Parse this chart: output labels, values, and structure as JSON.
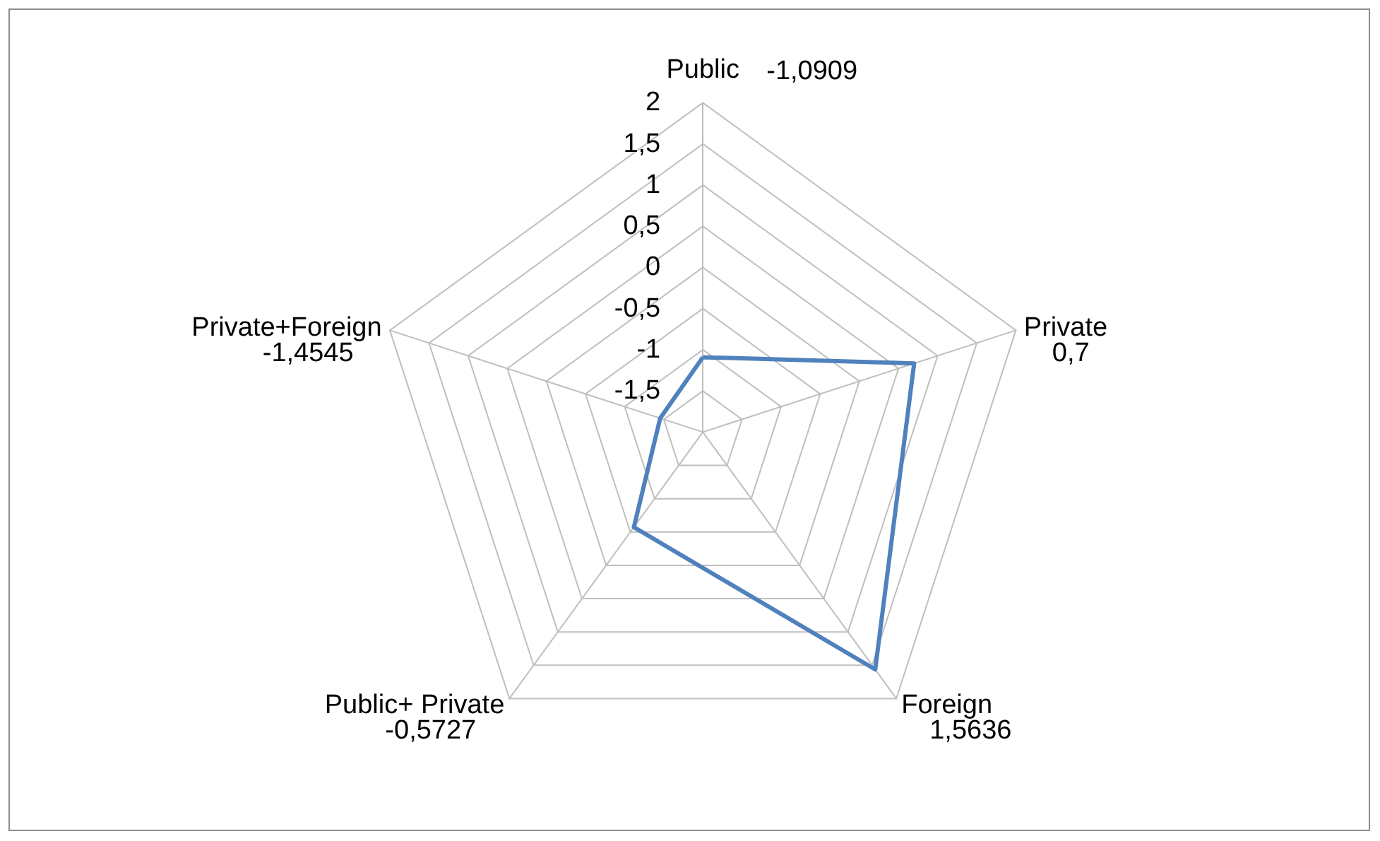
{
  "chart_data": {
    "type": "radar",
    "categories": [
      "Public",
      "Private",
      "Foreign",
      "Public+ Private",
      "Private+Foreign"
    ],
    "series": [
      {
        "color": "#4f81bd",
        "values": [
          -1.0909,
          0.7,
          1.5636,
          -0.5727,
          -1.4545
        ]
      }
    ],
    "annotations": [
      "-1,0909",
      "0,7",
      "1,5636",
      "-0,5727",
      "-1,4545"
    ],
    "ylim": [
      -2,
      2
    ],
    "yticks": [
      {
        "value": -1.5,
        "label": "-1,5"
      },
      -1,
      {
        "value": -0.5,
        "label": "-0,5"
      },
      0,
      {
        "value": 0.5,
        "label": "0,5"
      },
      1,
      {
        "value": 1.5,
        "label": "1,5"
      },
      2
    ],
    "marker": "none",
    "line_style": "solid",
    "grid": true
  }
}
